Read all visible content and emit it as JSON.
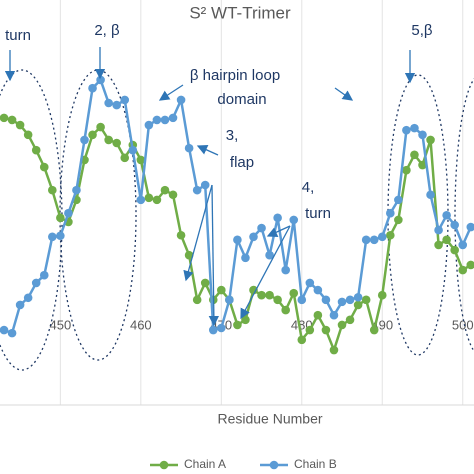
{
  "chart_data": {
    "type": "line",
    "title": "S² WT-Trimer",
    "x_label": "Residue Number",
    "x": [
      443,
      444,
      445,
      446,
      447,
      448,
      449,
      450,
      451,
      452,
      453,
      454,
      455,
      456,
      457,
      458,
      459,
      460,
      461,
      462,
      463,
      464,
      465,
      466,
      467,
      468,
      469,
      470,
      471,
      472,
      473,
      474,
      475,
      476,
      477,
      478,
      479,
      480,
      481,
      482,
      483,
      484,
      485,
      486,
      487,
      488,
      489,
      490,
      491,
      492,
      493,
      494,
      495,
      496,
      497,
      498,
      499,
      500,
      501
    ],
    "series": [
      {
        "name": "Chain A",
        "color": "#70ad47",
        "values": [
          5.7,
          5.66,
          5.56,
          5.37,
          5.07,
          4.74,
          4.29,
          3.75,
          3.67,
          4.1,
          4.88,
          5.37,
          5.52,
          5.27,
          5.21,
          4.92,
          5.17,
          4.88,
          4.14,
          4.1,
          4.29,
          4.2,
          3.41,
          3.02,
          2.15,
          2.48,
          2.15,
          2.34,
          2.15,
          1.66,
          1.76,
          2.34,
          2.24,
          2.24,
          2.15,
          1.95,
          2.28,
          1.37,
          1.56,
          1.85,
          1.56,
          1.17,
          1.66,
          1.76,
          2.05,
          2.15,
          1.56,
          2.24,
          3.41,
          3.71,
          4.68,
          4.98,
          4.78,
          5.27,
          3.22,
          3.32,
          3.12,
          2.73,
          2.83
        ]
      },
      {
        "name": "Chain B",
        "color": "#5b9bd5",
        "values": [
          1.56,
          1.5,
          2.05,
          2.19,
          2.48,
          2.63,
          3.38,
          3.4,
          3.84,
          4.29,
          5.27,
          6.28,
          6.44,
          5.99,
          5.95,
          6.05,
          5.07,
          4.1,
          5.56,
          5.66,
          5.66,
          5.7,
          6.05,
          5.11,
          4.29,
          4.39,
          1.56,
          1.6,
          2.15,
          3.32,
          2.97,
          3.38,
          3.55,
          3.02,
          3.75,
          2.73,
          3.71,
          2.15,
          2.48,
          2.34,
          2.15,
          1.85,
          2.11,
          2.15,
          2.2,
          3.32,
          3.32,
          3.38,
          3.84,
          4.1,
          5.46,
          5.5,
          5.37,
          4.2,
          3.51,
          3.8,
          3.61,
          3.22,
          3.57
        ]
      }
    ],
    "xlim": [
      442.5,
      501.4
    ],
    "ylim": [
      0,
      8
    ],
    "xticks": [
      450,
      460,
      470,
      480,
      490,
      500
    ],
    "grid": true,
    "annotations": [
      "turn",
      "2, β",
      "β hairpin loop",
      "domain",
      "3,",
      "flap",
      "4,",
      "turn",
      "5,β"
    ]
  }
}
